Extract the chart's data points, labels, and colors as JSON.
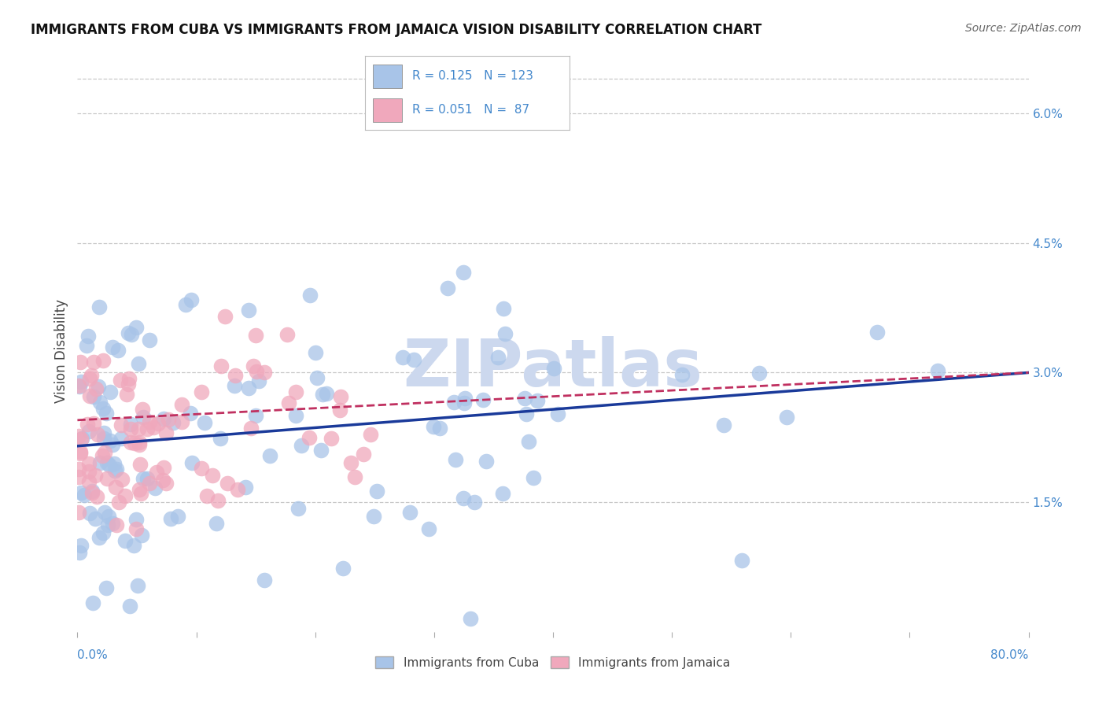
{
  "title": "IMMIGRANTS FROM CUBA VS IMMIGRANTS FROM JAMAICA VISION DISABILITY CORRELATION CHART",
  "source": "Source: ZipAtlas.com",
  "ylabel": "Vision Disability",
  "xlim": [
    0.0,
    80.0
  ],
  "ylim": [
    0.0,
    6.5
  ],
  "yticks": [
    1.5,
    3.0,
    4.5,
    6.0
  ],
  "cuba_R": 0.125,
  "cuba_N": 123,
  "jamaica_R": 0.051,
  "jamaica_N": 87,
  "cuba_color": "#a8c4e8",
  "jamaica_color": "#f0a8bc",
  "cuba_line_color": "#1a3a9a",
  "jamaica_line_color": "#c03060",
  "watermark": "ZIPatlas",
  "watermark_color": "#ccd8ee",
  "background_color": "#ffffff",
  "grid_color": "#c8c8c8",
  "title_color": "#111111",
  "axis_color": "#4488cc",
  "legend_color": "#4488cc"
}
